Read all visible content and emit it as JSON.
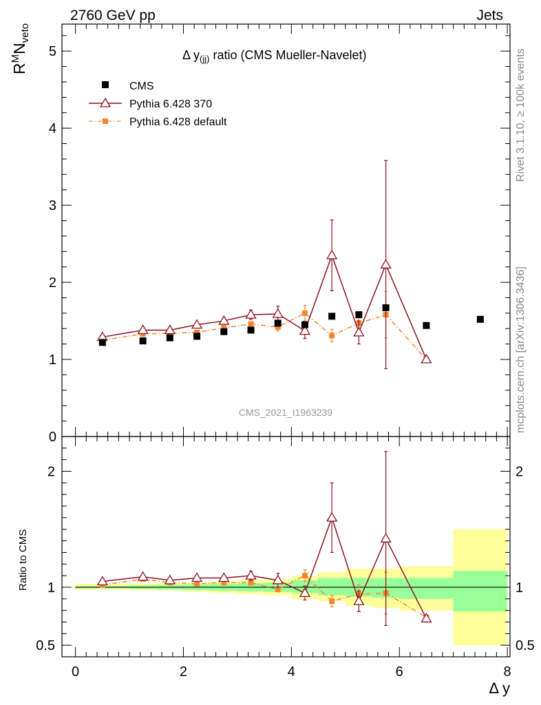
{
  "header": {
    "energy_label": "2760 GeV pp",
    "process_label": "Jets"
  },
  "side_labels": {
    "rivet_info": "Rivet 3.1.10, ≥ 100k events",
    "source_info": "mcplots.cern.ch [arXiv:1306.3436]"
  },
  "watermark": "CMS_2021_I1963239",
  "colors": {
    "cms": "#000000",
    "pythia_370": "#8b0f1f",
    "pythia_default": "#f5862e",
    "band_inner": "#99ff99",
    "band_outer": "#ffff99"
  },
  "chart_data": [
    {
      "type": "line",
      "panel": "main",
      "title": "Δ y(jj) ratio (CMS Mueller-Navelet)",
      "title_parts": {
        "pre": "Δ y",
        "sub": "(jj)",
        "post": " ratio (CMS Mueller-Navelet)"
      },
      "ylabel": "R^M N_veto",
      "ylabel_parts": {
        "r": "R",
        "sup": "M",
        "n": "N",
        "sub": "veto"
      },
      "xlim": [
        -0.25,
        8.05
      ],
      "ylim": [
        0,
        5.35
      ],
      "yticks": [
        0,
        1,
        2,
        3,
        4,
        5
      ],
      "ytick_labels": [
        "0",
        "1",
        "2",
        "3",
        "4",
        "5"
      ],
      "legend_position": "top-left",
      "series": [
        {
          "name": "CMS",
          "style": "markers",
          "x": [
            0.5,
            1.25,
            1.75,
            2.25,
            2.75,
            3.25,
            3.75,
            4.25,
            4.75,
            5.25,
            5.75,
            6.5,
            7.5
          ],
          "y": [
            1.22,
            1.24,
            1.28,
            1.3,
            1.36,
            1.38,
            1.47,
            1.45,
            1.56,
            1.58,
            1.67,
            1.44,
            1.52
          ]
        },
        {
          "name": "Pythia 6.428 370",
          "style": "line-triangles",
          "x": [
            0.5,
            1.25,
            1.75,
            2.25,
            2.75,
            3.25,
            3.75,
            4.25,
            4.75,
            5.25,
            5.75,
            6.5
          ],
          "y": [
            1.29,
            1.38,
            1.38,
            1.45,
            1.5,
            1.58,
            1.59,
            1.37,
            2.35,
            1.35,
            2.23,
            1.0
          ],
          "err": [
            0.02,
            0.03,
            0.03,
            0.03,
            0.04,
            0.06,
            0.1,
            0.1,
            0.46,
            0.15,
            1.35,
            0.02
          ]
        },
        {
          "name": "Pythia 6.428 default",
          "style": "dashdot-squares",
          "x": [
            0.5,
            1.25,
            1.75,
            2.25,
            2.75,
            3.25,
            3.75,
            4.25,
            4.75,
            5.25,
            5.75,
            6.5
          ],
          "y": [
            1.25,
            1.33,
            1.34,
            1.35,
            1.41,
            1.46,
            1.42,
            1.6,
            1.31,
            1.47,
            1.58,
            1.0
          ],
          "err": [
            0.02,
            0.02,
            0.02,
            0.02,
            0.03,
            0.03,
            0.05,
            0.1,
            0.08,
            0.12,
            0.3,
            0.02
          ]
        }
      ]
    },
    {
      "type": "line",
      "panel": "ratio",
      "xlabel": "Δ y",
      "ylabel": "Ratio to CMS",
      "xlim": [
        -0.25,
        8.05
      ],
      "ylim": [
        0.4,
        2.3
      ],
      "xticks": [
        0,
        2,
        4,
        6,
        8
      ],
      "xtick_labels": [
        "0",
        "2",
        "4",
        "6",
        "8"
      ],
      "yticks": [
        0.5,
        1,
        2
      ],
      "ytick_labels": [
        "0.5",
        "1",
        "2"
      ],
      "bands": {
        "edges": [
          0,
          1,
          1.5,
          2,
          2.5,
          3,
          3.5,
          4,
          4.5,
          5,
          5.5,
          6,
          7,
          8
        ],
        "inner": [
          [
            0.99,
            1.01
          ],
          [
            0.985,
            1.015
          ],
          [
            0.98,
            1.02
          ],
          [
            0.975,
            1.025
          ],
          [
            0.97,
            1.03
          ],
          [
            0.965,
            1.035
          ],
          [
            0.96,
            1.04
          ],
          [
            0.95,
            1.06
          ],
          [
            0.93,
            1.08
          ],
          [
            0.92,
            1.08
          ],
          [
            0.91,
            1.08
          ],
          [
            0.9,
            1.08
          ],
          [
            0.79,
            1.14
          ]
        ],
        "outer": [
          [
            0.98,
            1.03
          ],
          [
            0.975,
            1.03
          ],
          [
            0.97,
            1.04
          ],
          [
            0.96,
            1.04
          ],
          [
            0.95,
            1.05
          ],
          [
            0.94,
            1.06
          ],
          [
            0.93,
            1.07
          ],
          [
            0.9,
            1.1
          ],
          [
            0.88,
            1.13
          ],
          [
            0.84,
            1.16
          ],
          [
            0.82,
            1.16
          ],
          [
            0.8,
            1.18
          ],
          [
            0.5,
            1.5
          ]
        ]
      },
      "series": [
        {
          "name": "Pythia 6.428 370",
          "x": [
            0.5,
            1.25,
            1.75,
            2.25,
            2.75,
            3.25,
            3.75,
            4.25,
            4.75,
            5.25,
            5.75,
            6.5
          ],
          "y": [
            1.05,
            1.09,
            1.06,
            1.08,
            1.08,
            1.1,
            1.06,
            0.95,
            1.6,
            0.88,
            1.42,
            0.73
          ],
          "err": [
            0.02,
            0.02,
            0.02,
            0.02,
            0.03,
            0.04,
            0.06,
            0.06,
            0.3,
            0.09,
            0.75,
            0.02
          ]
        },
        {
          "name": "Pythia 6.428 default",
          "x": [
            0.5,
            1.25,
            1.75,
            2.25,
            2.75,
            3.25,
            3.75,
            4.25,
            4.75,
            5.25,
            5.75,
            6.5
          ],
          "y": [
            1.02,
            1.07,
            1.04,
            1.03,
            1.04,
            1.04,
            0.98,
            1.1,
            0.88,
            0.94,
            0.95,
            0.74
          ],
          "err": [
            0.01,
            0.01,
            0.01,
            0.01,
            0.02,
            0.02,
            0.03,
            0.05,
            0.05,
            0.08,
            0.18,
            0.02
          ]
        }
      ]
    }
  ]
}
